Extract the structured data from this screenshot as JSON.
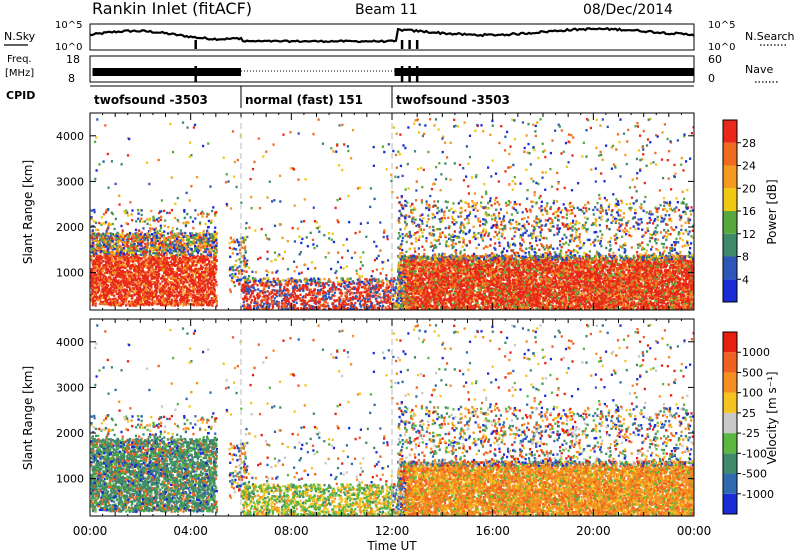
{
  "header": {
    "title": "Rankin Inlet (fitACF)",
    "beam": "Beam 11",
    "date": "08/Dec/2014"
  },
  "status_panel": {
    "nsky_label": "N.Sky",
    "nsearch_label": "N.Search",
    "freq_label_top": "Freq.",
    "freq_label_unit": "[MHz]",
    "nave_label": "Nave",
    "cpid_label": "CPID",
    "noise_ticks": [
      "10^5",
      "10^0"
    ],
    "freq_ticks_left": [
      "18",
      "8"
    ],
    "freq_ticks_right": [
      "60",
      "0"
    ],
    "cpid_segments": [
      {
        "label": "twofsound -3503",
        "start_hour": 0.0,
        "end_hour": 6.0
      },
      {
        "label": "normal (fast) 151",
        "start_hour": 6.0,
        "end_hour": 12.0
      },
      {
        "label": "twofsound -3503",
        "start_hour": 12.0,
        "end_hour": 24.0
      }
    ]
  },
  "chart_data": [
    {
      "type": "heatmap",
      "name": "power",
      "ylabel": "Slant Range [km]",
      "xlabel": "",
      "xlim_hours": [
        0,
        24
      ],
      "ylim": [
        180,
        4500
      ],
      "yticks": [
        1000,
        2000,
        3000,
        4000
      ],
      "colorbar": {
        "label": "Power [dB]",
        "ticks": [
          4,
          8,
          12,
          16,
          20,
          24,
          28
        ],
        "range": [
          0,
          30
        ],
        "colors": [
          "#1a2bd8",
          "#2e55b8",
          "#3c8a6a",
          "#58a840",
          "#f0c810",
          "#f59a20",
          "#f06a20",
          "#e82818"
        ]
      }
    },
    {
      "type": "heatmap",
      "name": "velocity",
      "ylabel": "Slant Range [km]",
      "xlabel": "Time UT",
      "xlim_hours": [
        0,
        24
      ],
      "ylim": [
        180,
        4500
      ],
      "yticks": [
        1000,
        2000,
        3000,
        4000
      ],
      "xticks": [
        "00:00",
        "04:00",
        "08:00",
        "12:00",
        "16:00",
        "20:00",
        "00:00"
      ],
      "colorbar": {
        "label": "Velocity [m s⁻¹]",
        "ticks": [
          "1000",
          "500",
          "100",
          "25",
          "-25",
          "-100",
          "-500",
          "-1000"
        ],
        "colors": [
          "#1a2bd8",
          "#2e6ab0",
          "#3e8a6a",
          "#5ab840",
          "#c8c8c8",
          "#f5c420",
          "#f59020",
          "#f06020",
          "#e82010"
        ]
      }
    }
  ]
}
